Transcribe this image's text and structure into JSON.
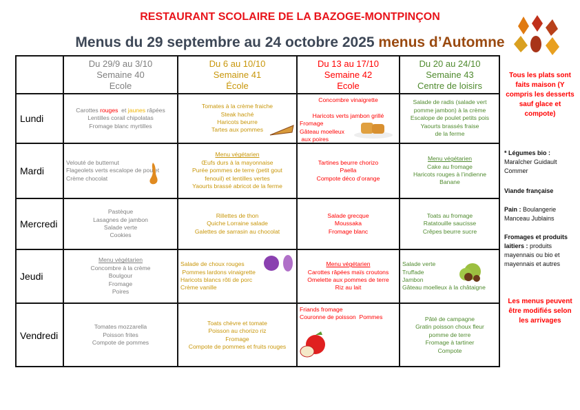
{
  "title": "RESTAURANT SCOLAIRE DE LA BAZOGE-MONTPINÇON",
  "subtitle": "Menus du 29 septembre au 24 octobre 2025",
  "season": "menus d’Automne",
  "colors": {
    "week40": "#7f7f7f",
    "week41": "#c8960a",
    "week42": "#ff0000",
    "week43": "#4f8a2e",
    "title": "#e8141b"
  },
  "weeks": [
    {
      "dates": "Du 29/9 au 3/10",
      "week": "Semaine 40",
      "place": "Ecole",
      "color": "#7f7f7f"
    },
    {
      "dates": "Du 6 au 10/10",
      "week": "Semaine 41",
      "place": "École",
      "color": "#c8960a"
    },
    {
      "dates": "Du 13 au 17/10",
      "week": "Semaine 42",
      "place": "Ecole",
      "color": "#ff0000"
    },
    {
      "dates": "Du 20 au 24/10",
      "week": "Semaine 43",
      "place": "Centre de loisirs",
      "color": "#4f8a2e"
    }
  ],
  "days": [
    "Lundi",
    "Mardi",
    "Mercredi",
    "Jeudi",
    "Vendredi"
  ],
  "menus": [
    [
      {
        "align": "center",
        "lines": [
          [
            {
              "t": "Carottes "
            },
            {
              "t": "rouges",
              "c": "#ff0000"
            },
            {
              "t": "  et "
            },
            {
              "t": "jaunes",
              "c": "#f0b400"
            },
            {
              "t": " râpées"
            }
          ],
          "Lentilles corail chipolatas",
          "Fromage blanc myrtilles"
        ]
      },
      {
        "align": "center",
        "lines": [
          "Tomates à la crème fraiche",
          "Steak haché",
          "Haricots beurre",
          "Tartes aux pommes"
        ]
      },
      {
        "align": "center",
        "valign": "top",
        "lines": [
          "Concombre vinaigrette",
          "",
          "Haricots verts jambon grillé",
          {
            "left": "Fromage"
          },
          {
            "left": "Gâteau moelleux"
          },
          {
            "left": " aux poires"
          }
        ]
      },
      {
        "align": "center",
        "lines": [
          "Salade de radis (salade vert",
          "pomme jambon) à la crème",
          "Escalope de poulet petits pois",
          "Yaourts brassés fraise",
          "de la ferme"
        ]
      }
    ],
    [
      {
        "align": "left",
        "lines": [
          "Velouté de butternut",
          "Flageolets verts escalope de poulet",
          "Crème chocolat"
        ]
      },
      {
        "align": "center",
        "lines": [
          {
            "u": "Menu végétarien"
          },
          "Œufs durs à la mayonnaise",
          "Purée pommes de terre (petit gout",
          "fenouil) et lentilles vertes",
          "Yaourts brassé abricot de la ferme"
        ]
      },
      {
        "align": "center",
        "lines": [
          "Tartines beurre chorizo",
          "Paella",
          "Compote déco d’orange"
        ]
      },
      {
        "align": "center",
        "lines": [
          {
            "u": "Menu végétarien"
          },
          "Cake au fromage",
          "Haricots rouges à l’indienne",
          "Banane"
        ]
      }
    ],
    [
      {
        "align": "center",
        "lines": [
          "Pastèque",
          "Lasagnes de jambon",
          "Salade verte",
          "Cookies"
        ]
      },
      {
        "align": "center",
        "lines": [
          "Rillettes de thon",
          "Quiche Lorraine salade",
          "Galettes de sarrasin au chocolat"
        ]
      },
      {
        "align": "center",
        "lines": [
          "Salade grecque",
          "Moussaka",
          "Fromage blanc"
        ]
      },
      {
        "align": "center",
        "lines": [
          "Toats au fromage",
          "Ratatouille saucisse",
          "Crêpes beurre sucre"
        ]
      }
    ],
    [
      {
        "align": "center",
        "lines": [
          {
            "u": "Menu végétarien"
          },
          "Concombre à la crème",
          "Boulgour",
          "Fromage",
          "Poires"
        ]
      },
      {
        "align": "left",
        "lines": [
          "Salade de choux rouges",
          " Pommes lardons vinaigrette",
          "Haricots blancs rôti de porc",
          "Crème vanille"
        ]
      },
      {
        "align": "center",
        "lines": [
          {
            "u": "Menu végétarien"
          },
          "Carottes râpées maïs croutons",
          "Omelette aux pommes de terre",
          "Riz au lait"
        ]
      },
      {
        "align": "left",
        "lines": [
          "Salade verte",
          "Truffade",
          "Jambon",
          "Gâteau moelleux à la châtaigne"
        ]
      }
    ],
    [
      {
        "align": "center",
        "lines": [
          "Tomates mozzarella",
          "Poisson frites",
          "Compote de pommes"
        ]
      },
      {
        "align": "center",
        "lines": [
          "Toats chèvre et tomate",
          "Poisson au chorizo riz",
          "Fromage",
          "Compote de pommes et fruits rouges"
        ]
      },
      {
        "align": "left",
        "valign": "top",
        "lines": [
          "Friands fromage",
          "Couronne de poisson  Pommes"
        ]
      },
      {
        "align": "center",
        "lines": [
          "Pâté de campagne",
          "Gratin poisson choux fleur",
          "pomme de terre",
          "Fromage à tartiner",
          "Compote"
        ]
      }
    ]
  ],
  "sidebar": {
    "homemade": "Tous les plats sont faits maison (Y compris les desserts sauf glace et compote)",
    "veg_label": "* Légumes bio :",
    "veg_text": "Maraîcher Guidault Commer",
    "meat": "Viande française",
    "bread_label": "Pain :",
    "bread_text": "Boulangerie Manceau Jublains",
    "dairy_label": "Fromages et produits laitiers :",
    "dairy_text": "produits mayennais ou bio et mayennais et autres",
    "notice": "Les menus peuvent être modifiés selon les arrivages"
  }
}
